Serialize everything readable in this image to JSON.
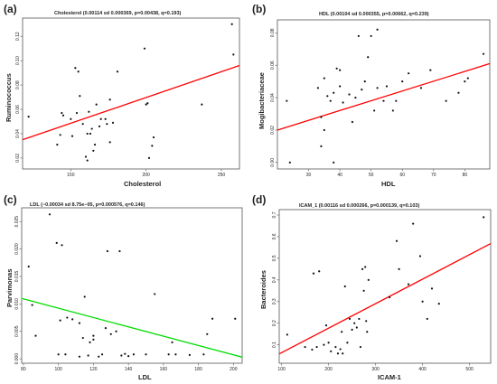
{
  "chart_data": [
    {
      "panel": "(a)",
      "type": "scatter",
      "title": "Cholesterol (0.00114 sd 0.000369, p=0.00438, q=0.193)",
      "xlabel": "Cholesterol",
      "ylabel": "Ruminococcus",
      "xlim": [
        118,
        262
      ],
      "ylim": [
        0.011,
        0.135
      ],
      "xticks": [
        150,
        200,
        250
      ],
      "yticks": [
        0.02,
        0.04,
        0.06,
        0.08,
        0.1,
        0.12
      ],
      "ytick_labels": [
        "0.02",
        "0.04",
        "0.06",
        "0.08",
        "0.10",
        "0.12"
      ],
      "fit": {
        "x": [
          118,
          262
        ],
        "y": [
          0.035,
          0.096
        ],
        "color": "#ff0000"
      },
      "points": [
        [
          122,
          0.054
        ],
        [
          141,
          0.031
        ],
        [
          143,
          0.039
        ],
        [
          144,
          0.057
        ],
        [
          145,
          0.055
        ],
        [
          150,
          0.052
        ],
        [
          151,
          0.038
        ],
        [
          153,
          0.094
        ],
        [
          154,
          0.057
        ],
        [
          155,
          0.091
        ],
        [
          156,
          0.071
        ],
        [
          158,
          0.048
        ],
        [
          160,
          0.021
        ],
        [
          161,
          0.04
        ],
        [
          161,
          0.018
        ],
        [
          162,
          0.058
        ],
        [
          163,
          0.04
        ],
        [
          164,
          0.044
        ],
        [
          165,
          0.026
        ],
        [
          166,
          0.031
        ],
        [
          167,
          0.064
        ],
        [
          169,
          0.046
        ],
        [
          170,
          0.052
        ],
        [
          173,
          0.052
        ],
        [
          174,
          0.048
        ],
        [
          176,
          0.068
        ],
        [
          176,
          0.033
        ],
        [
          178,
          0.049
        ],
        [
          181,
          0.091
        ],
        [
          199,
          0.11
        ],
        [
          200,
          0.064
        ],
        [
          201,
          0.065
        ],
        [
          202,
          0.02
        ],
        [
          204,
          0.03
        ],
        [
          205,
          0.037
        ],
        [
          237,
          0.064
        ],
        [
          257,
          0.13
        ],
        [
          258,
          0.105
        ]
      ]
    },
    {
      "panel": "(b)",
      "type": "scatter",
      "title": "HDL (0.00104 sd 0.000355, p=0.00662, q=0.239)",
      "xlabel": "HDL",
      "ylabel": "Mogibacteriaceae",
      "xlim": [
        20,
        88
      ],
      "ylim": [
        -0.004,
        0.088
      ],
      "xticks": [
        30,
        40,
        50,
        60,
        70,
        80
      ],
      "yticks": [
        0.0,
        0.02,
        0.04,
        0.06,
        0.08
      ],
      "ytick_labels": [
        "0.00",
        "0.02",
        "0.04",
        "0.06",
        "0.08"
      ],
      "fit": {
        "x": [
          20,
          88
        ],
        "y": [
          0.02,
          0.061
        ],
        "color": "#ff0000"
      },
      "points": [
        [
          23,
          0.038
        ],
        [
          24,
          0.0
        ],
        [
          33,
          0.046
        ],
        [
          34,
          0.028
        ],
        [
          34,
          0.01
        ],
        [
          35,
          0.052
        ],
        [
          35,
          0.02
        ],
        [
          36,
          0.041
        ],
        [
          37,
          0.038
        ],
        [
          38,
          0.043
        ],
        [
          38,
          0.0
        ],
        [
          39,
          0.058
        ],
        [
          40,
          0.057
        ],
        [
          40,
          0.047
        ],
        [
          41,
          0.037
        ],
        [
          43,
          0.042
        ],
        [
          44,
          0.025
        ],
        [
          45,
          0.04
        ],
        [
          46,
          0.078
        ],
        [
          47,
          0.045
        ],
        [
          48,
          0.05
        ],
        [
          49,
          0.065
        ],
        [
          50,
          0.078
        ],
        [
          51,
          0.032
        ],
        [
          52,
          0.082
        ],
        [
          52,
          0.046
        ],
        [
          54,
          0.038
        ],
        [
          55,
          0.047
        ],
        [
          57,
          0.032
        ],
        [
          58,
          0.038
        ],
        [
          60,
          0.05
        ],
        [
          62,
          0.055
        ],
        [
          66,
          0.046
        ],
        [
          69,
          0.057
        ],
        [
          74,
          0.038
        ],
        [
          78,
          0.043
        ],
        [
          80,
          0.05
        ],
        [
          81,
          0.052
        ],
        [
          86,
          0.067
        ]
      ]
    },
    {
      "panel": "(c)",
      "type": "scatter",
      "title": "LDL (−0.00034 sd 8.75e−05, p=0.000576, q=0.146)",
      "xlabel": "LDL",
      "ylabel": "Parvimonas",
      "xlim": [
        79,
        205
      ],
      "ylim": [
        -0.0008,
        0.0275
      ],
      "xticks": [
        80,
        100,
        120,
        140,
        160,
        180,
        200
      ],
      "yticks": [
        0.0,
        0.005,
        0.01,
        0.015,
        0.02,
        0.025
      ],
      "ytick_labels": [
        "0.000",
        "0.005",
        "0.010",
        "0.015",
        "0.020",
        "0.025"
      ],
      "fit": {
        "x": [
          79,
          205
        ],
        "y": [
          0.011,
          0.0003
        ],
        "color": "#00dd00"
      },
      "points": [
        [
          83,
          0.0168
        ],
        [
          85,
          0.0098
        ],
        [
          87,
          0.0042
        ],
        [
          95,
          0.0263
        ],
        [
          99,
          0.0211
        ],
        [
          100,
          0.0008
        ],
        [
          101,
          0.007
        ],
        [
          102,
          0.0207
        ],
        [
          104,
          0.0008
        ],
        [
          105,
          0.0075
        ],
        [
          108,
          0.0072
        ],
        [
          112,
          0.0004
        ],
        [
          112,
          0.0065
        ],
        [
          114,
          0.0038
        ],
        [
          115,
          0.0113
        ],
        [
          117,
          0.0006
        ],
        [
          118,
          0.003
        ],
        [
          120,
          0.0042
        ],
        [
          120,
          0.0035
        ],
        [
          123,
          0.0004
        ],
        [
          125,
          0.0008
        ],
        [
          127,
          0.0056
        ],
        [
          128,
          0.0196
        ],
        [
          130,
          0.0045
        ],
        [
          133,
          0.005
        ],
        [
          135,
          0.0196
        ],
        [
          136,
          0.0006
        ],
        [
          138,
          0.0009
        ],
        [
          140,
          0.0005
        ],
        [
          143,
          0.0008
        ],
        [
          150,
          0.0008
        ],
        [
          155,
          0.0118
        ],
        [
          163,
          0.0008
        ],
        [
          165,
          0.003
        ],
        [
          167,
          0.0008
        ],
        [
          175,
          0.0007
        ],
        [
          183,
          0.0008
        ],
        [
          185,
          0.0045
        ],
        [
          188,
          0.0073
        ],
        [
          201,
          0.0073
        ]
      ]
    },
    {
      "panel": "(d)",
      "type": "scatter",
      "title": "ICAM_1 (0.00116 sd 0.000266, p=0.000139, q=0.103)",
      "xlabel": "ICAM-1",
      "ylabel": "Bacteroides",
      "xlim": [
        95,
        545
      ],
      "ylim": [
        0.015,
        0.725
      ],
      "xticks": [
        100,
        200,
        300,
        400,
        500
      ],
      "yticks": [
        0.1,
        0.2,
        0.3,
        0.4,
        0.5,
        0.6,
        0.7
      ],
      "ytick_labels": [
        "0.1",
        "0.2",
        "0.3",
        "0.4",
        "0.5",
        "0.6",
        "0.7"
      ],
      "fit": {
        "x": [
          95,
          545
        ],
        "y": [
          0.058,
          0.568
        ],
        "color": "#ff0000"
      },
      "points": [
        [
          112,
          0.147
        ],
        [
          150,
          0.09
        ],
        [
          165,
          0.078
        ],
        [
          168,
          0.43
        ],
        [
          175,
          0.09
        ],
        [
          180,
          0.44
        ],
        [
          190,
          0.1
        ],
        [
          195,
          0.19
        ],
        [
          200,
          0.11
        ],
        [
          205,
          0.07
        ],
        [
          215,
          0.09
        ],
        [
          220,
          0.06
        ],
        [
          225,
          0.08
        ],
        [
          228,
          0.16
        ],
        [
          230,
          0.06
        ],
        [
          235,
          0.37
        ],
        [
          240,
          0.11
        ],
        [
          245,
          0.22
        ],
        [
          250,
          0.17
        ],
        [
          255,
          0.2
        ],
        [
          260,
          0.18
        ],
        [
          265,
          0.22
        ],
        [
          268,
          0.09
        ],
        [
          272,
          0.45
        ],
        [
          275,
          0.35
        ],
        [
          278,
          0.46
        ],
        [
          280,
          0.21
        ],
        [
          282,
          0.16
        ],
        [
          285,
          0.4
        ],
        [
          330,
          0.32
        ],
        [
          345,
          0.58
        ],
        [
          350,
          0.45
        ],
        [
          370,
          0.38
        ],
        [
          380,
          0.66
        ],
        [
          395,
          0.51
        ],
        [
          400,
          0.3
        ],
        [
          410,
          0.22
        ],
        [
          420,
          0.36
        ],
        [
          435,
          0.29
        ],
        [
          530,
          0.69
        ]
      ]
    }
  ]
}
